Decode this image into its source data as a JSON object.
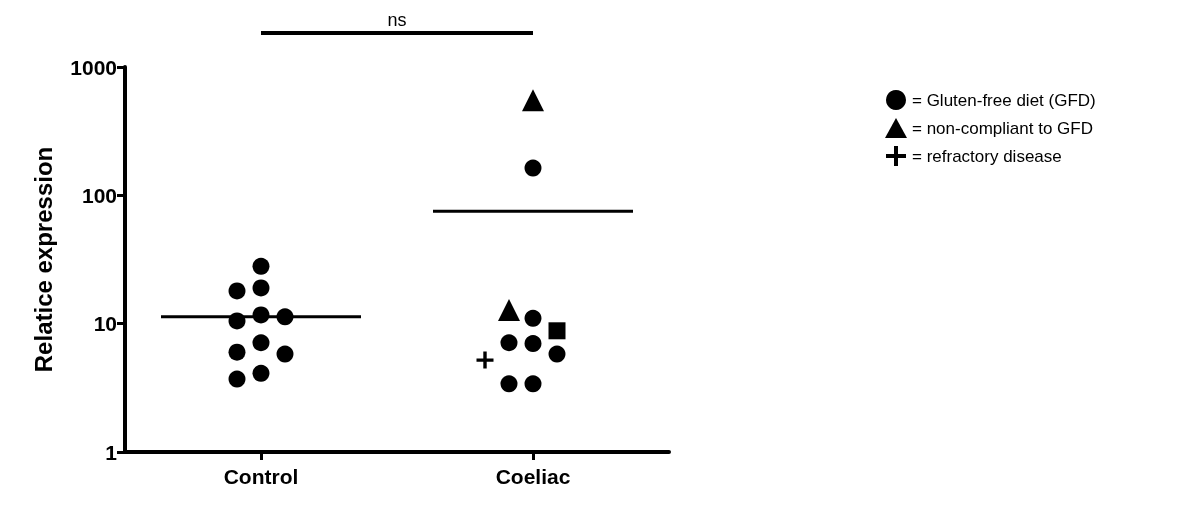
{
  "chart_data": {
    "type": "scatter",
    "ylabel": "Relatice expression",
    "categories": [
      "Control",
      "Coeliac"
    ],
    "log": "y",
    "ylim": [
      1,
      1000
    ],
    "yticks": [
      1,
      10,
      100,
      1000
    ],
    "grid": false,
    "legend": "top right",
    "annotations": [
      "ns"
    ],
    "series": [
      {
        "color": "#000000",
        "marker": "circle",
        "x": [
          "Control",
          "Control",
          "Control",
          "Control",
          "Control",
          "Control",
          "Control",
          "Control",
          "Control",
          "Control",
          "Control"
        ],
        "values": [
          28,
          19,
          18,
          11.7,
          10.5,
          11.3,
          7.1,
          6.0,
          5.8,
          4.1,
          3.7
        ]
      },
      {
        "name": "= Gluten-free diet (GFD)",
        "color": "#000000",
        "marker": "circle",
        "x": [
          "Coeliac",
          "Coeliac",
          "Coeliac",
          "Coeliac",
          "Coeliac",
          "Coeliac",
          "Coeliac"
        ],
        "values": [
          163,
          11,
          7.0,
          7.1,
          5.8,
          3.4,
          3.4
        ]
      },
      {
        "name": "= non-compliant to GFD",
        "color": "#000000",
        "marker": "triangle",
        "x": [
          "Coeliac",
          "Coeliac"
        ],
        "values": [
          550,
          12.8
        ]
      },
      {
        "name": "= refractory disease",
        "color": "#000000",
        "marker": "cross",
        "x": [
          "Coeliac"
        ],
        "values": [
          5.2
        ]
      },
      {
        "color": "#000000",
        "marker": "square",
        "x": [
          "Coeliac"
        ],
        "values": [
          8.8
        ]
      },
      {
        "type": "box",
        "color": "#000000",
        "boxes": [
          {
            "low": 11.3,
            "q1": 11.3,
            "median": 11.3,
            "q3": 11.3,
            "high": 11.3
          },
          {
            "low": 75,
            "q1": 75,
            "median": 75,
            "q3": 75,
            "high": 75
          }
        ]
      }
    ]
  }
}
